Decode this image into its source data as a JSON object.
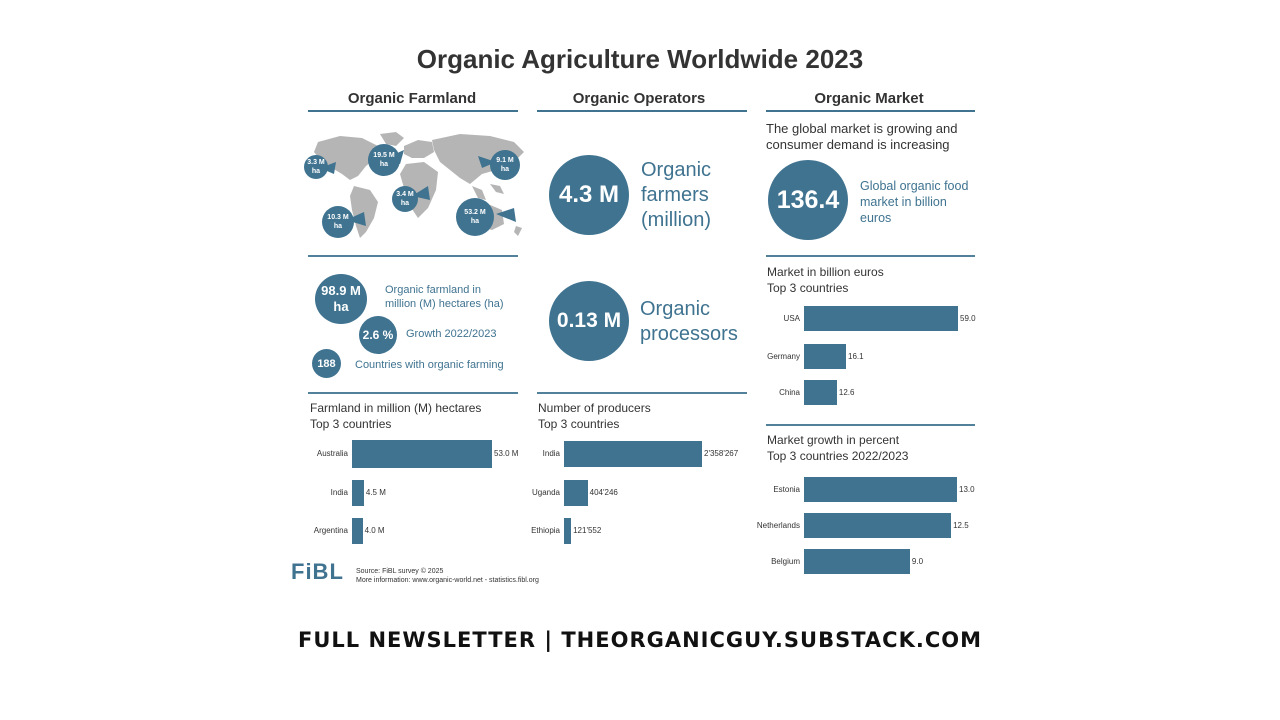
{
  "title": "Organic Agriculture Worldwide 2023",
  "columns": {
    "farmland": "Organic Farmland",
    "operators": "Organic Operators",
    "market": "Organic Market"
  },
  "map_labels": [
    {
      "value": "3.3 M",
      "unit": "ha"
    },
    {
      "value": "19.5 M",
      "unit": "ha"
    },
    {
      "value": "9.1 M",
      "unit": "ha"
    },
    {
      "value": "3.4 M",
      "unit": "ha"
    },
    {
      "value": "10.3 M",
      "unit": "ha"
    },
    {
      "value": "53.2 M",
      "unit": "ha"
    }
  ],
  "farmland_stats": {
    "hectares": {
      "value": "98.9 M",
      "unit": "ha",
      "desc": "Organic farmland in million (M) hectares (ha)"
    },
    "growth": {
      "value": "2.6 %",
      "desc": "Growth 2022/2023"
    },
    "countries": {
      "value": "188",
      "desc": "Countries with organic farming"
    }
  },
  "operators": {
    "farmers": {
      "value": "4.3 M",
      "desc": "Organic farmers (million)"
    },
    "processors": {
      "value": "0.13 M",
      "desc": "Organic processors"
    }
  },
  "market": {
    "intro": "The global market is growing and consumer demand is increasing",
    "total": {
      "value": "136.4",
      "desc": "Global organic food market in billion euros"
    }
  },
  "chart_data": [
    {
      "type": "bar",
      "orientation": "horizontal",
      "title": "Farmland in million (M) hectares",
      "subtitle": "Top 3 countries",
      "categories": [
        "Australia",
        "India",
        "Argentina"
      ],
      "values": [
        53.0,
        4.5,
        4.0
      ],
      "value_labels": [
        "53.0 M",
        "4.5 M",
        "4.0 M"
      ]
    },
    {
      "type": "bar",
      "orientation": "horizontal",
      "title": "Number of producers",
      "subtitle": "Top 3 countries",
      "categories": [
        "India",
        "Uganda",
        "Ethiopia"
      ],
      "values": [
        2358267,
        404246,
        121552
      ],
      "value_labels": [
        "2'358'267",
        "404'246",
        "121'552"
      ]
    },
    {
      "type": "bar",
      "orientation": "horizontal",
      "title": "Market in billion euros",
      "subtitle": "Top 3 countries",
      "categories": [
        "USA",
        "Germany",
        "China"
      ],
      "values": [
        59.0,
        16.1,
        12.6
      ],
      "value_labels": [
        "59.0",
        "16.1",
        "12.6"
      ]
    },
    {
      "type": "bar",
      "orientation": "horizontal",
      "title": "Market growth in percent",
      "subtitle": "Top 3 countries 2022/2023",
      "categories": [
        "Estonia",
        "Netherlands",
        "Belgium"
      ],
      "values": [
        13.0,
        12.5,
        9.0
      ],
      "value_labels": [
        "13.0",
        "12.5",
        "9.0"
      ]
    }
  ],
  "colors": {
    "accent": "#3f7390",
    "map": "#b5b5b5"
  },
  "logo": "FiBL",
  "source": {
    "line1": "Source: FiBL survey © 2025",
    "line2": "More information: www.organic-world.net - statistics.fibl.org"
  },
  "footer": "FULL NEWSLETTER | THEORGANICGUY.SUBSTACK.COM"
}
